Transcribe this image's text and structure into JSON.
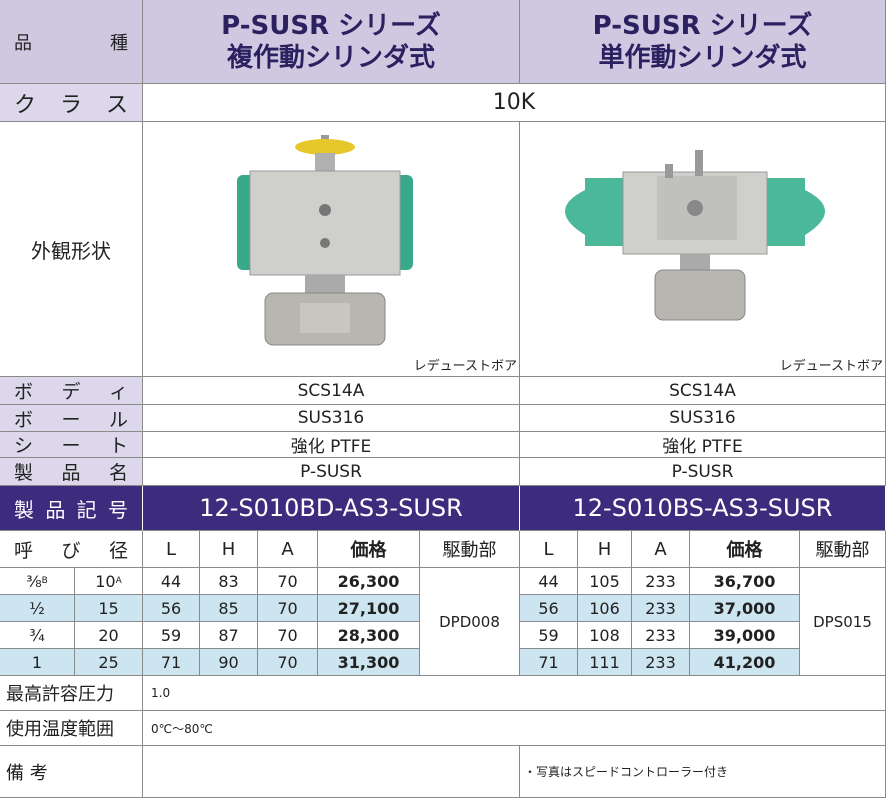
{
  "header": {
    "label": "品 種",
    "left": [
      "P-SUSR シリーズ",
      "複作動シリンダ式"
    ],
    "right": [
      "P-SUSR シリーズ",
      "単作動シリンダ式"
    ]
  },
  "class_row": {
    "label": "ク ラ ス",
    "value": "10K"
  },
  "appearance": {
    "label": "外観形状",
    "left_note": "レデューストボア",
    "right_note": "レデューストボア"
  },
  "spec_rows": [
    {
      "label": "ボ デ ィ",
      "left": "SCS14A",
      "right": "SCS14A"
    },
    {
      "label": "ボ ー ル",
      "left": "SUS316",
      "right": "SUS316"
    },
    {
      "label": "シ ー ト",
      "left": "強化 PTFE",
      "right": "強化 PTFE"
    },
    {
      "label": "製 品 名",
      "left": "P-SUSR",
      "right": "P-SUSR"
    }
  ],
  "code_row": {
    "label": "製品記号",
    "left": "12-S010BD-AS3-SUSR",
    "right": "12-S010BS-AS3-SUSR"
  },
  "size_header": {
    "label": "呼 び 径",
    "left": [
      "L",
      "H",
      "A",
      "価格",
      "駆動部"
    ],
    "right": [
      "L",
      "H",
      "A",
      "価格",
      "駆動部"
    ]
  },
  "sizes": [
    {
      "inch": "⅜",
      "inch_sup": "B",
      "mm": "10",
      "mm_sup": "A",
      "left": [
        "44",
        "83",
        "70",
        "26,300"
      ],
      "right": [
        "44",
        "105",
        "233",
        "36,700"
      ]
    },
    {
      "inch": "½",
      "mm": "15",
      "left": [
        "56",
        "85",
        "70",
        "27,100"
      ],
      "right": [
        "56",
        "106",
        "233",
        "37,000"
      ]
    },
    {
      "inch": "¾",
      "mm": "20",
      "left": [
        "59",
        "87",
        "70",
        "28,300"
      ],
      "right": [
        "59",
        "108",
        "233",
        "39,000"
      ]
    },
    {
      "inch": "1",
      "mm": "25",
      "left": [
        "71",
        "90",
        "70",
        "31,300"
      ],
      "right": [
        "71",
        "111",
        "233",
        "41,200"
      ]
    }
  ],
  "left_drive": "DPD008",
  "right_drive": "DPS015",
  "footer_rows": [
    {
      "label": "最高許容圧力",
      "value": "1.0"
    },
    {
      "label": "使用温度範囲",
      "value": "0℃～80℃"
    },
    {
      "label": "備 考",
      "value": "・写真はスピードコントローラー付き"
    }
  ]
}
